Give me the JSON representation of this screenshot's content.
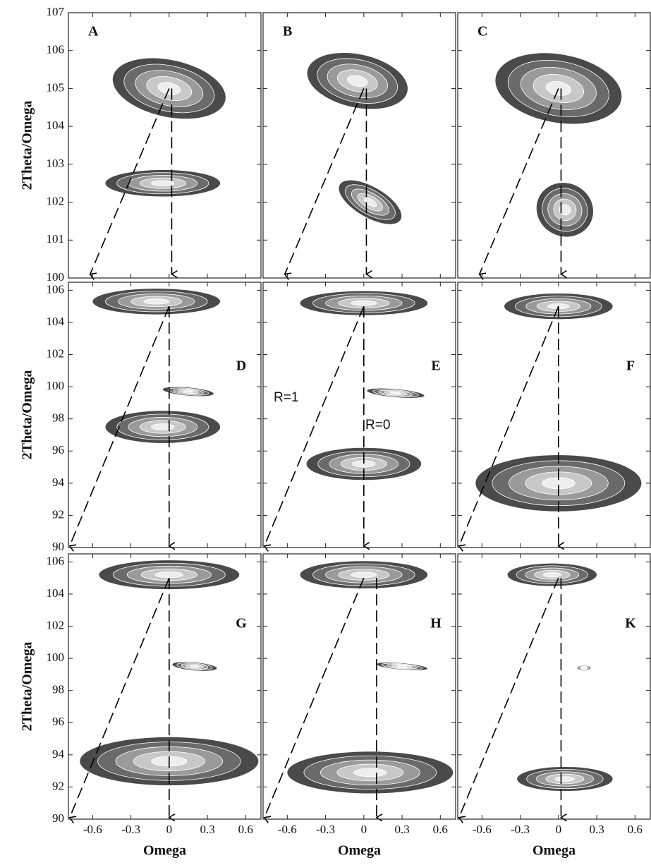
{
  "chart_data": [
    {
      "type": "contour",
      "label": "A",
      "ylabel": "2Theta/Omega",
      "xlim": [
        -0.79,
        0.72
      ],
      "ylim": [
        100,
        107
      ],
      "yticks": [
        100,
        101,
        102,
        103,
        104,
        105,
        106,
        107
      ],
      "xticks": [
        -0.6,
        -0.3,
        0.0,
        0.3,
        0.6
      ],
      "peaks": {
        "x": [
          0.0,
          -0.05
        ],
        "y": [
          105.0,
          102.5
        ],
        "width": [
          0.9,
          0.9
        ],
        "height": [
          1.5,
          0.7
        ],
        "tilt": [
          12,
          0
        ]
      },
      "lines": [
        {
          "x": [
            0.0,
            -0.62
          ],
          "y": [
            105.0,
            100.1
          ]
        },
        {
          "x": [
            0.02,
            0.02
          ],
          "y": [
            105.0,
            100.1
          ]
        }
      ]
    },
    {
      "type": "contour",
      "label": "B",
      "xlim": [
        -0.79,
        0.72
      ],
      "ylim": [
        100,
        107
      ],
      "yticks": [
        100,
        101,
        102,
        103,
        104,
        105,
        106,
        107
      ],
      "xticks": [
        -0.6,
        -0.3,
        0.0,
        0.3,
        0.6
      ],
      "peaks": {
        "x": [
          -0.05,
          0.05
        ],
        "y": [
          105.2,
          102.0
        ],
        "width": [
          0.8,
          0.55
        ],
        "height": [
          1.4,
          0.8
        ],
        "tilt": [
          12,
          30
        ]
      },
      "lines": [
        {
          "x": [
            0.0,
            -0.62
          ],
          "y": [
            105.0,
            100.1
          ]
        },
        {
          "x": [
            0.02,
            0.02
          ],
          "y": [
            105.0,
            100.1
          ]
        }
      ]
    },
    {
      "type": "contour",
      "label": "C",
      "xlim": [
        -0.79,
        0.72
      ],
      "ylim": [
        100,
        107
      ],
      "yticks": [
        100,
        101,
        102,
        103,
        104,
        105,
        106,
        107
      ],
      "xticks": [
        -0.6,
        -0.3,
        0.0,
        0.3,
        0.6
      ],
      "peaks": {
        "x": [
          0.0,
          0.05
        ],
        "y": [
          105.0,
          101.8
        ],
        "width": [
          1.0,
          0.45
        ],
        "height": [
          1.8,
          1.4
        ],
        "tilt": [
          10,
          25
        ]
      },
      "lines": [
        {
          "x": [
            0.0,
            -0.62
          ],
          "y": [
            105.0,
            100.1
          ]
        },
        {
          "x": [
            0.02,
            0.02
          ],
          "y": [
            105.0,
            100.1
          ]
        }
      ]
    },
    {
      "type": "contour",
      "label": "D",
      "ylabel": "2Theta/Omega",
      "xlim": [
        -0.79,
        0.72
      ],
      "ylim": [
        90,
        106.5
      ],
      "yticks": [
        90,
        92,
        94,
        96,
        98,
        100,
        102,
        104,
        106
      ],
      "xticks": [
        -0.6,
        -0.3,
        0.0,
        0.3,
        0.6
      ],
      "peaks": {
        "x": [
          -0.1,
          0.15,
          -0.05
        ],
        "y": [
          105.3,
          99.7,
          97.5
        ],
        "width": [
          1.0,
          0.4,
          0.9
        ],
        "height": [
          1.6,
          0.5,
          2.0
        ],
        "tilt": [
          0,
          5,
          0
        ]
      },
      "lines": [
        {
          "x": [
            0.0,
            -0.78
          ],
          "y": [
            105.0,
            90.1
          ]
        },
        {
          "x": [
            0.0,
            0.0
          ],
          "y": [
            105.0,
            90.1
          ]
        }
      ]
    },
    {
      "type": "contour",
      "label": "E",
      "annotations": [
        "R=1",
        "R=0"
      ],
      "xlim": [
        -0.79,
        0.72
      ],
      "ylim": [
        90,
        106.5
      ],
      "yticks": [
        90,
        92,
        94,
        96,
        98,
        100,
        102,
        104,
        106
      ],
      "xticks": [
        -0.6,
        -0.3,
        0.0,
        0.3,
        0.6
      ],
      "peaks": {
        "x": [
          0.0,
          0.25,
          0.0
        ],
        "y": [
          105.2,
          99.6,
          95.2
        ],
        "width": [
          1.0,
          0.45,
          0.9
        ],
        "height": [
          1.5,
          0.5,
          2.0
        ],
        "tilt": [
          0,
          5,
          0
        ]
      },
      "lines": [
        {
          "x": [
            0.0,
            -0.78
          ],
          "y": [
            105.0,
            90.1
          ]
        },
        {
          "x": [
            0.0,
            0.0
          ],
          "y": [
            105.0,
            90.1
          ]
        }
      ]
    },
    {
      "type": "contour",
      "label": "F",
      "xlim": [
        -0.79,
        0.72
      ],
      "ylim": [
        90,
        106.5
      ],
      "yticks": [
        90,
        92,
        94,
        96,
        98,
        100,
        102,
        104,
        106
      ],
      "xticks": [
        -0.6,
        -0.3,
        0.0,
        0.3,
        0.6
      ],
      "peaks": {
        "x": [
          0.0,
          0.0
        ],
        "y": [
          105.0,
          94.0
        ],
        "width": [
          0.85,
          1.3
        ],
        "height": [
          1.6,
          3.5
        ],
        "tilt": [
          0,
          0
        ]
      },
      "lines": [
        {
          "x": [
            0.0,
            -0.78
          ],
          "y": [
            105.0,
            90.1
          ]
        },
        {
          "x": [
            0.0,
            0.0
          ],
          "y": [
            105.0,
            90.1
          ]
        }
      ]
    },
    {
      "type": "contour",
      "label": "G",
      "ylabel": "2Theta/Omega",
      "xlabel": "Omega",
      "xticklabels": true,
      "xlim": [
        -0.79,
        0.72
      ],
      "ylim": [
        90,
        106.5
      ],
      "yticks": [
        90,
        92,
        94,
        96,
        98,
        100,
        102,
        104,
        106
      ],
      "xticks": [
        -0.6,
        -0.3,
        0.0,
        0.3,
        0.6
      ],
      "peaks": {
        "x": [
          0.0,
          0.2,
          0.0
        ],
        "y": [
          105.2,
          99.5,
          93.6
        ],
        "width": [
          1.1,
          0.35,
          1.4
        ],
        "height": [
          1.8,
          0.5,
          3.0
        ],
        "tilt": [
          0,
          5,
          0
        ]
      },
      "lines": [
        {
          "x": [
            0.0,
            -0.78
          ],
          "y": [
            105.0,
            90.1
          ]
        },
        {
          "x": [
            0.0,
            0.0
          ],
          "y": [
            105.0,
            90.1
          ]
        }
      ]
    },
    {
      "type": "contour",
      "label": "H",
      "xlabel": "Omega",
      "xticklabels": true,
      "xlim": [
        -0.79,
        0.72
      ],
      "ylim": [
        90,
        106.5
      ],
      "yticks": [
        90,
        92,
        94,
        96,
        98,
        100,
        102,
        104,
        106
      ],
      "xticks": [
        -0.6,
        -0.3,
        0.0,
        0.3,
        0.6
      ],
      "peaks": {
        "x": [
          0.0,
          0.3,
          0.05
        ],
        "y": [
          105.2,
          99.5,
          92.9
        ],
        "width": [
          1.0,
          0.4,
          1.3
        ],
        "height": [
          1.7,
          0.4,
          2.6
        ],
        "tilt": [
          0,
          5,
          0
        ]
      },
      "lines": [
        {
          "x": [
            0.0,
            -0.78
          ],
          "y": [
            105.0,
            90.1
          ]
        },
        {
          "x": [
            0.1,
            0.1
          ],
          "y": [
            105.0,
            90.1
          ]
        }
      ]
    },
    {
      "type": "contour",
      "label": "K",
      "xlabel": "Omega",
      "xticklabels": true,
      "xlim": [
        -0.79,
        0.72
      ],
      "ylim": [
        90,
        106.5
      ],
      "yticks": [
        90,
        92,
        94,
        96,
        98,
        100,
        102,
        104,
        106
      ],
      "xticks": [
        -0.6,
        -0.3,
        0.0,
        0.3,
        0.6
      ],
      "peaks": {
        "x": [
          -0.05,
          0.2,
          0.05
        ],
        "y": [
          105.2,
          99.4,
          92.5
        ],
        "width": [
          0.7,
          0.1,
          0.75
        ],
        "height": [
          1.4,
          0.3,
          1.5
        ],
        "tilt": [
          0,
          0,
          0
        ]
      },
      "lines": [
        {
          "x": [
            0.0,
            -0.78
          ],
          "y": [
            105.0,
            90.1
          ]
        },
        {
          "x": [
            0.02,
            0.02
          ],
          "y": [
            105.0,
            90.1
          ]
        }
      ]
    }
  ]
}
